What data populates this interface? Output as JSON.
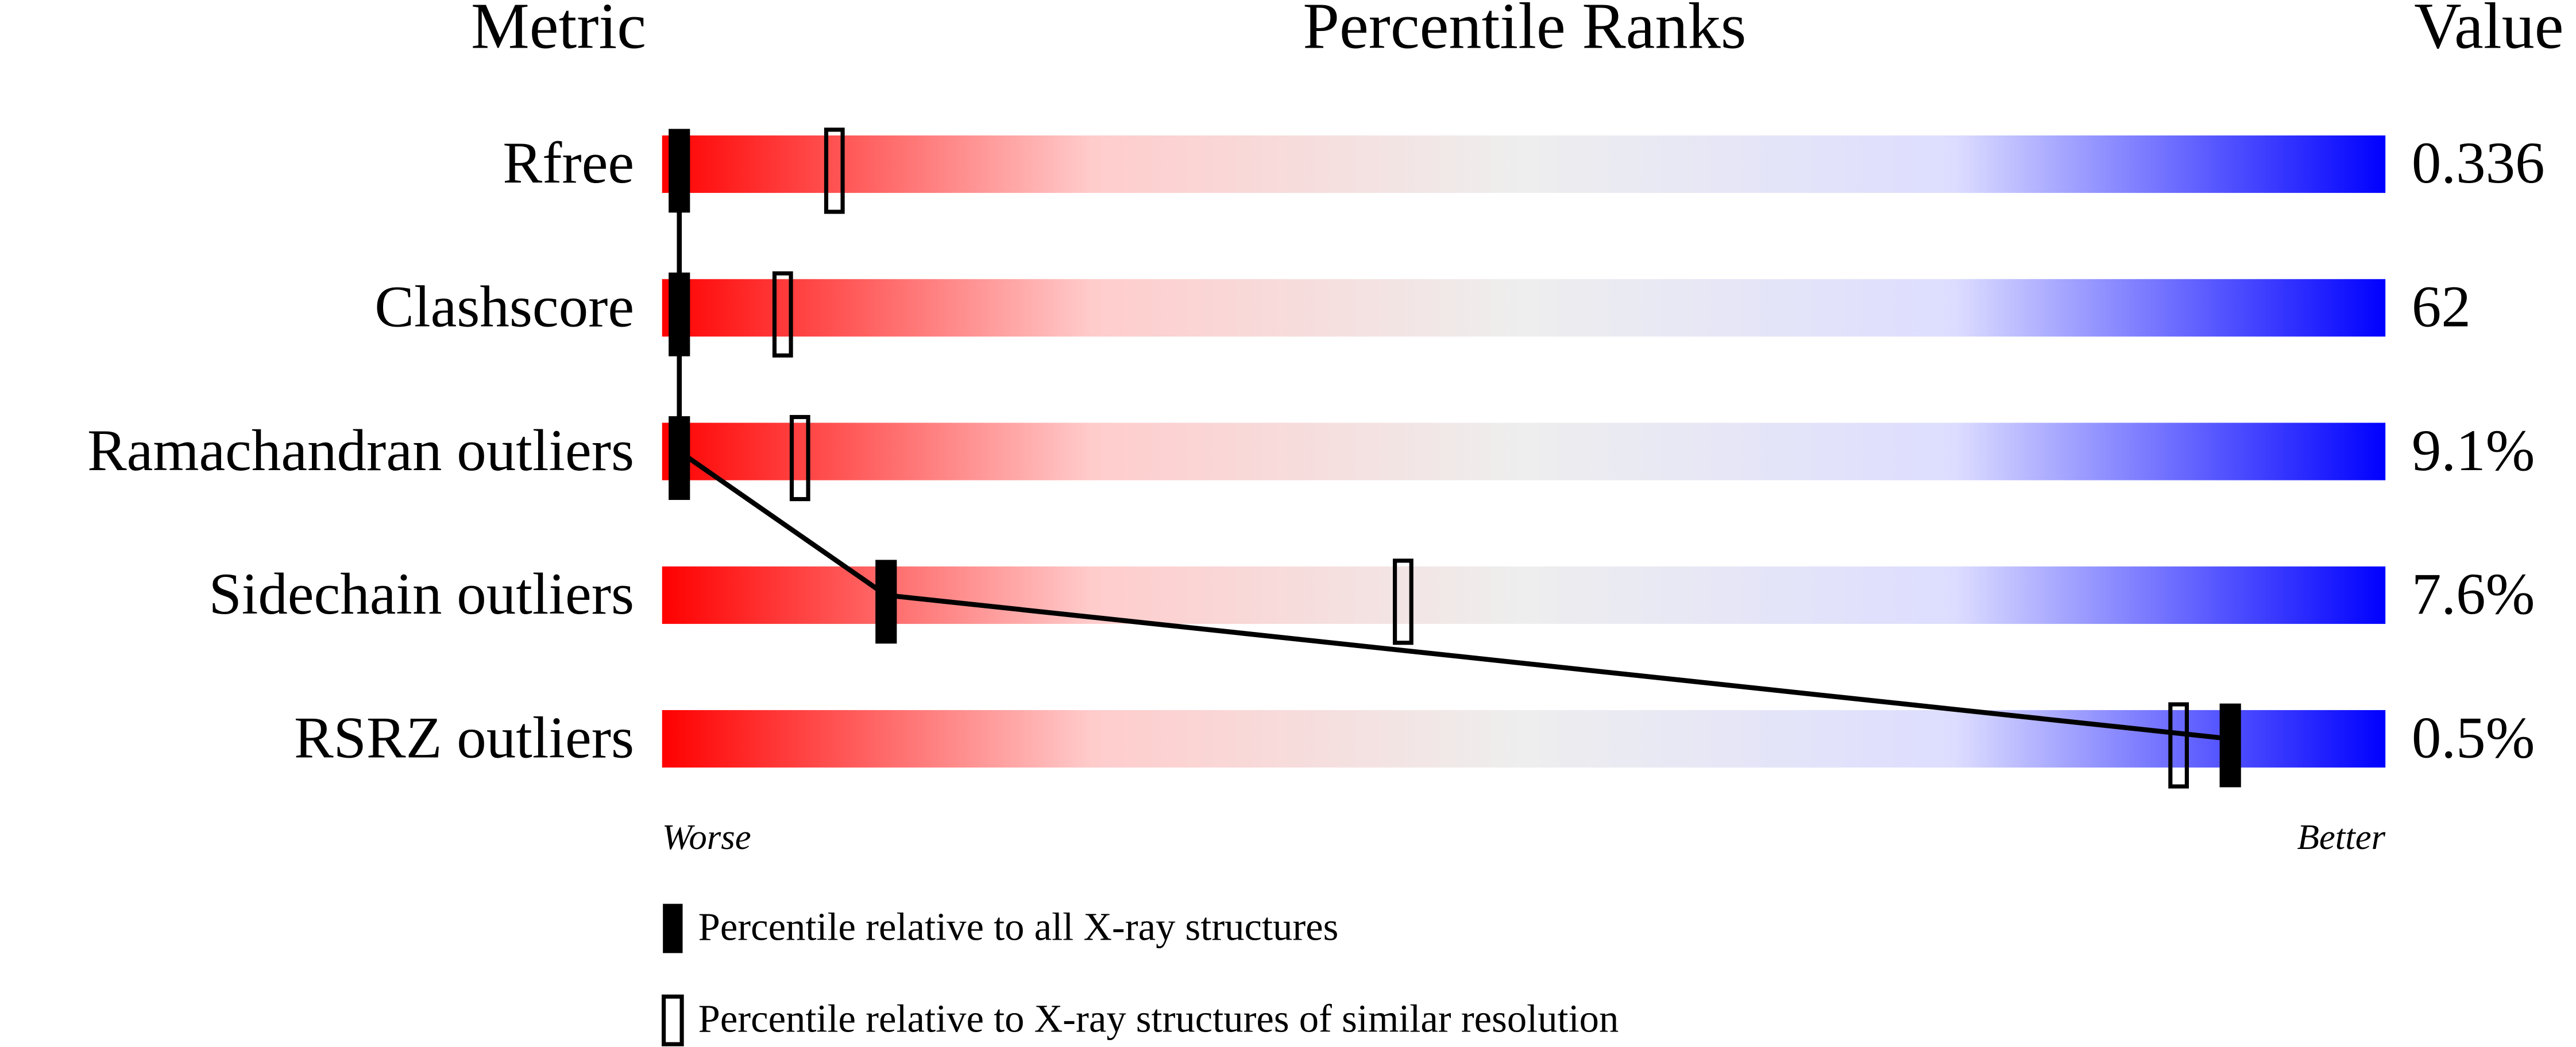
{
  "chart_data": {
    "type": "percentile",
    "headers": [
      "Metric",
      "Percentile Ranks",
      "Value"
    ],
    "categories": [
      "Rfree",
      "Clashscore",
      "Ramachandran outliers",
      "Sidechain outliers",
      "RSRZ outliers"
    ],
    "metric_values": [
      "0.336",
      "62",
      "9.1%",
      "7.6%",
      "0.5%"
    ],
    "xlim": [
      0,
      100
    ],
    "axis_labels": [
      "Worse",
      "Better"
    ],
    "gradient": [
      "#ff0000",
      "#ffcccc",
      "#eeeeee",
      "#ddddff",
      "#0000ff"
    ],
    "series": [
      {
        "name": "Percentile relative to all X-ray structures",
        "color": "#000000",
        "filled": true,
        "connected": true,
        "values": [
          1,
          1,
          1,
          13,
          91
        ]
      },
      {
        "name": "Percentile relative to X-ray structures of similar resolution",
        "color": "#000000",
        "filled": false,
        "connected": false,
        "values": [
          10,
          7,
          8,
          43,
          88
        ]
      }
    ]
  }
}
